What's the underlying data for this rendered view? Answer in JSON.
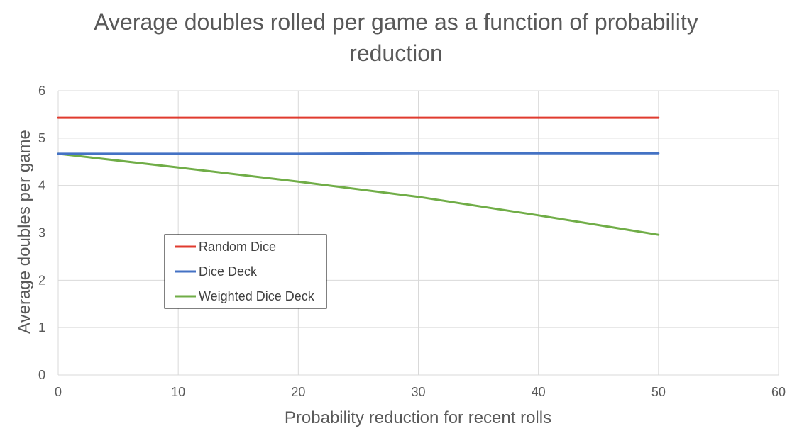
{
  "chart_data": {
    "type": "line",
    "title": "Average doubles rolled per game as a function of probability reduction",
    "title_lines": [
      "Average doubles rolled per game as a function of probability",
      "reduction"
    ],
    "xlabel": "Probability reduction for recent rolls",
    "ylabel": "Average doubles per game",
    "xlim": [
      0,
      60
    ],
    "ylim": [
      0,
      6
    ],
    "xticks": [
      0,
      10,
      20,
      30,
      40,
      50,
      60
    ],
    "yticks": [
      0,
      1,
      2,
      3,
      4,
      5,
      6
    ],
    "grid": true,
    "legend_position": "left-center",
    "series": [
      {
        "name": "Random Dice",
        "color": "#e03b2f",
        "x": [
          0,
          10,
          20,
          30,
          40,
          50
        ],
        "values": [
          5.43,
          5.43,
          5.43,
          5.43,
          5.43,
          5.43
        ]
      },
      {
        "name": "Dice Deck",
        "color": "#4472c4",
        "x": [
          0,
          10,
          20,
          30,
          40,
          50
        ],
        "values": [
          4.67,
          4.67,
          4.67,
          4.68,
          4.68,
          4.68
        ]
      },
      {
        "name": "Weighted Dice Deck",
        "color": "#70ad47",
        "x": [
          0,
          10,
          20,
          30,
          40,
          50
        ],
        "values": [
          4.67,
          4.38,
          4.08,
          3.76,
          3.37,
          2.96
        ]
      }
    ]
  }
}
